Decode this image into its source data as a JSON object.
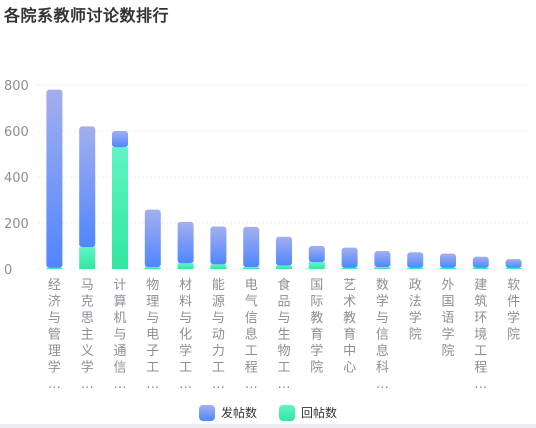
{
  "title": "各院系教师讨论数排行",
  "chart_data": {
    "type": "bar",
    "stacked": true,
    "categories": [
      "经济与管理学…",
      "马克思主义学…",
      "计算机与通信…",
      "物理与电子工…",
      "材料与化学工…",
      "能源与动力工…",
      "电气信息工程…",
      "食品与生物工…",
      "国际教育学院",
      "艺术教育中心",
      "数学与信息科…",
      "政法学院",
      "外国语学院",
      "建筑环境工程…",
      "软件学院"
    ],
    "series": [
      {
        "name": "回帖数",
        "values": [
          5,
          95,
          530,
          8,
          25,
          20,
          8,
          15,
          30,
          5,
          8,
          5,
          5,
          5,
          5
        ],
        "color_top": "#5ff5c5",
        "color_bottom": "#33e69e"
      },
      {
        "name": "发帖数",
        "values": [
          775,
          525,
          70,
          250,
          180,
          165,
          175,
          125,
          70,
          88,
          70,
          68,
          62,
          48,
          38
        ],
        "color_top": "#a3afee",
        "color_bottom": "#4f86ff"
      }
    ],
    "legend_order": [
      "发帖数",
      "回帖数"
    ],
    "yticks": [
      0,
      200,
      400,
      600,
      800
    ],
    "ylim": [
      0,
      800
    ],
    "grid": true,
    "legend_position": "bottom-center"
  }
}
